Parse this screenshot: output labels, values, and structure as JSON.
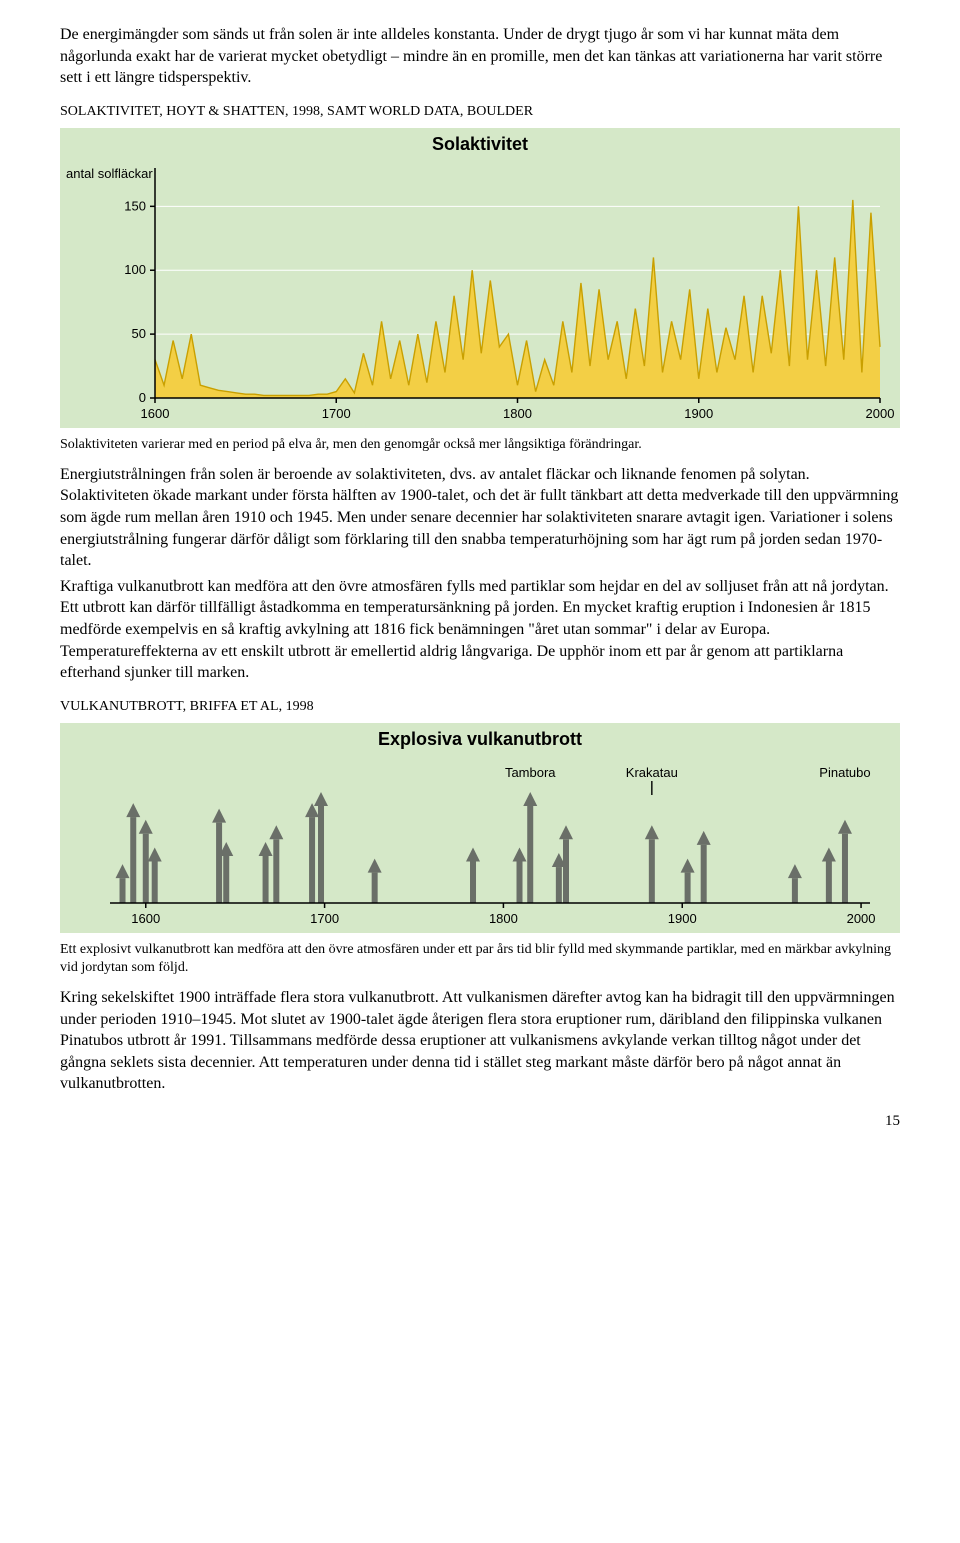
{
  "para1": "De energimängder som sänds ut från solen är inte alldeles konstanta. Under de drygt tjugo år som vi har kunnat mäta dem någorlunda exakt har de varierat mycket obetydligt – mindre än en promille, men det kan tänkas att variationerna har varit större sett i ett längre tidsperspektiv.",
  "sec1_title": "SOLAKTIVITET, HOYT & SHATTEN, 1998, SAMT WORLD DATA, BOULDER",
  "chart1": {
    "type": "area-line",
    "title": "Solaktivitet",
    "title_color": "#000",
    "title_fontsize": 18,
    "title_fontweight": "bold",
    "ylabel": "antal solfläckar",
    "ylabel_fontsize": 13,
    "background_color": "#d5e8c8",
    "plot_bg_color": "#d5e8c8",
    "grid_color": "#ffffff",
    "axis_color": "#000000",
    "line_color": "#c9a000",
    "fill_color": "#f3cf45",
    "xlim": [
      1600,
      2000
    ],
    "ylim": [
      0,
      180
    ],
    "ytick_values": [
      0,
      50,
      100,
      150
    ],
    "xtick_values": [
      1600,
      1700,
      1800,
      1900,
      2000
    ],
    "series_years": [
      1600,
      1605,
      1610,
      1615,
      1620,
      1625,
      1630,
      1635,
      1640,
      1645,
      1650,
      1655,
      1660,
      1665,
      1670,
      1675,
      1680,
      1685,
      1690,
      1695,
      1700,
      1705,
      1710,
      1715,
      1720,
      1725,
      1730,
      1735,
      1740,
      1745,
      1750,
      1755,
      1760,
      1765,
      1770,
      1775,
      1780,
      1785,
      1790,
      1795,
      1800,
      1805,
      1810,
      1815,
      1820,
      1825,
      1830,
      1835,
      1840,
      1845,
      1850,
      1855,
      1860,
      1865,
      1870,
      1875,
      1880,
      1885,
      1890,
      1895,
      1900,
      1905,
      1910,
      1915,
      1920,
      1925,
      1930,
      1935,
      1940,
      1945,
      1950,
      1955,
      1960,
      1965,
      1970,
      1975,
      1980,
      1985,
      1990,
      1995,
      2000
    ],
    "series_values": [
      30,
      10,
      45,
      15,
      50,
      10,
      8,
      6,
      5,
      4,
      3,
      3,
      2,
      2,
      2,
      2,
      2,
      2,
      3,
      3,
      5,
      15,
      4,
      35,
      10,
      60,
      15,
      45,
      10,
      50,
      12,
      60,
      20,
      80,
      30,
      100,
      35,
      92,
      40,
      50,
      10,
      45,
      5,
      30,
      10,
      60,
      20,
      90,
      25,
      85,
      30,
      60,
      15,
      70,
      25,
      110,
      20,
      60,
      30,
      85,
      15,
      70,
      20,
      55,
      30,
      80,
      20,
      80,
      35,
      100,
      25,
      150,
      30,
      100,
      25,
      110,
      30,
      155,
      20,
      145,
      40
    ]
  },
  "caption1": "Solaktiviteten varierar med en period på elva år, men den genomgår också mer långsiktiga förändringar.",
  "para2": "Energiutstrålningen från solen är beroende av solaktiviteten, dvs. av antalet fläckar och liknande fenomen på solytan. Solaktiviteten ökade markant under första hälften av 1900-talet, och det är fullt tänkbart att detta medverkade till den uppvärmning som ägde rum mellan åren 1910 och 1945. Men under senare decennier har solaktiviteten snarare avtagit igen. Variationer i solens energiutstrålning fungerar därför dåligt som förklaring till den snabba temperaturhöjning som har ägt rum på jorden sedan 1970-talet.",
  "para3": "Kraftiga vulkanutbrott kan medföra att den övre atmosfären fylls med partiklar som hejdar en del av solljuset från att nå jordytan. Ett utbrott kan därför tillfälligt åstadkomma en temperatursänkning på jorden. En mycket kraftig eruption i Indonesien år 1815 medförde exempelvis en så kraftig avkylning att 1816 fick benämningen \"året utan sommar\" i delar av Europa. Temperatureffekterna av ett enskilt utbrott är emellertid aldrig långvariga. De upphör inom ett par år genom att partiklarna efterhand sjunker till marken.",
  "sec2_title": "VULKANUTBROTT, BRIFFA ET AL, 1998",
  "chart2": {
    "type": "event-arrows",
    "title": "Explosiva vulkanutbrott",
    "title_color": "#000",
    "title_fontsize": 18,
    "title_fontweight": "bold",
    "background_color": "#d5e8c8",
    "grid_color": "#ffffff",
    "axis_color": "#000000",
    "arrow_color": "#6a6f68",
    "label_fontsize": 13,
    "xlim": [
      1580,
      2005
    ],
    "xtick_values": [
      1600,
      1700,
      1800,
      1900,
      2000
    ],
    "annotations": [
      {
        "label": "Tambora",
        "year": 1815,
        "line_to": 1815
      },
      {
        "label": "Krakatau",
        "year": 1883,
        "line_to": 1883,
        "with_tickbar": true
      },
      {
        "label": "Pinatubo",
        "year": 1991,
        "line_to": 1991
      }
    ],
    "events": [
      {
        "year": 1587,
        "mag": 0.35
      },
      {
        "year": 1593,
        "mag": 0.9
      },
      {
        "year": 1600,
        "mag": 0.75
      },
      {
        "year": 1605,
        "mag": 0.5
      },
      {
        "year": 1641,
        "mag": 0.85
      },
      {
        "year": 1645,
        "mag": 0.55
      },
      {
        "year": 1667,
        "mag": 0.55
      },
      {
        "year": 1673,
        "mag": 0.7
      },
      {
        "year": 1693,
        "mag": 0.9
      },
      {
        "year": 1698,
        "mag": 1.0
      },
      {
        "year": 1728,
        "mag": 0.4
      },
      {
        "year": 1783,
        "mag": 0.5
      },
      {
        "year": 1809,
        "mag": 0.5
      },
      {
        "year": 1815,
        "mag": 1.0
      },
      {
        "year": 1831,
        "mag": 0.45
      },
      {
        "year": 1835,
        "mag": 0.7
      },
      {
        "year": 1883,
        "mag": 0.7
      },
      {
        "year": 1903,
        "mag": 0.4
      },
      {
        "year": 1912,
        "mag": 0.65
      },
      {
        "year": 1963,
        "mag": 0.35
      },
      {
        "year": 1982,
        "mag": 0.5
      },
      {
        "year": 1991,
        "mag": 0.75
      }
    ]
  },
  "caption2": "Ett explosivt vulkanutbrott kan medföra att den övre atmosfären under ett par års tid blir fylld med skymmande partiklar, med en märkbar avkylning vid jordytan som följd.",
  "para4": "Kring sekelskiftet 1900 inträffade flera stora vulkanutbrott. Att vulkanismen därefter avtog kan ha bidragit till den uppvärmningen under perioden 1910–1945. Mot slutet av 1900-talet ägde återigen flera stora eruptioner rum, däribland den filippinska vulkanen Pinatubos utbrott år 1991. Tillsammans medförde dessa eruptioner att vulkanismens avkylande verkan tilltog något under det gångna seklets sista decennier. Att temperaturen under denna tid i stället steg markant måste därför bero på något annat än vulkanutbrotten.",
  "page_number": "15"
}
